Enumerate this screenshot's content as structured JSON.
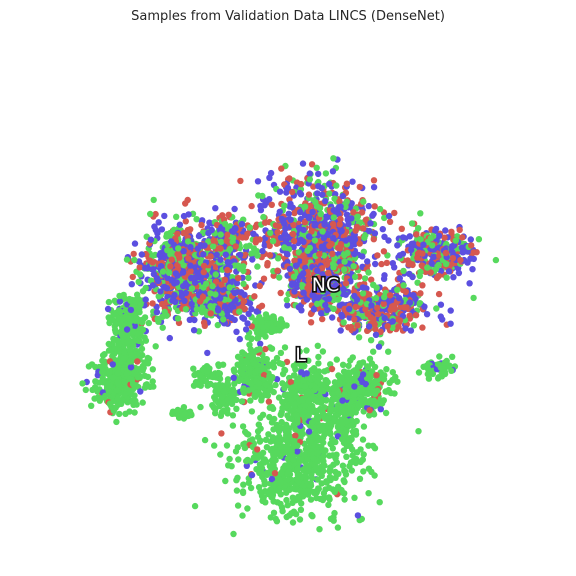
{
  "chart_data": {
    "type": "scatter",
    "title": "Samples from Validation Data LINCS (DenseNet)",
    "xlabel": "",
    "ylabel": "",
    "xlim": [
      -100,
      100
    ],
    "ylim": [
      -100,
      100
    ],
    "grid": false,
    "axes_visible": false,
    "legend": "none",
    "series": [
      {
        "color": "#5b4fe0",
        "point_count": 1400
      },
      {
        "color": "#d6584f",
        "point_count": 1100
      },
      {
        "color": "#56d95d",
        "point_count": 2500
      }
    ],
    "clusters": [
      {
        "center": [
          -43,
          7
        ],
        "spread": [
          8,
          9
        ],
        "composition": [
          0.4,
          0.32,
          0.28
        ],
        "weight": 0.14
      },
      {
        "center": [
          -24,
          17
        ],
        "spread": [
          6,
          6
        ],
        "composition": [
          0.38,
          0.3,
          0.32
        ],
        "weight": 0.05
      },
      {
        "center": [
          -27,
          -5
        ],
        "spread": [
          7,
          5
        ],
        "composition": [
          0.46,
          0.34,
          0.2
        ],
        "weight": 0.06
      },
      {
        "center": [
          13,
          21
        ],
        "spread": [
          11,
          11
        ],
        "composition": [
          0.42,
          0.34,
          0.24
        ],
        "weight": 0.17
      },
      {
        "center": [
          13,
          0
        ],
        "spread": [
          6,
          5
        ],
        "composition": [
          0.4,
          0.38,
          0.22
        ],
        "weight": 0.04
      },
      {
        "center": [
          36,
          -8
        ],
        "spread": [
          10,
          5
        ],
        "composition": [
          0.42,
          0.36,
          0.22
        ],
        "weight": 0.07
      },
      {
        "center": [
          60,
          14
        ],
        "spread": [
          7,
          5
        ],
        "composition": [
          0.4,
          0.32,
          0.28
        ],
        "weight": 0.06
      },
      {
        "center": [
          -63,
          -12
        ],
        "spread": [
          4,
          4
        ],
        "composition": [
          0.06,
          0.02,
          0.92
        ],
        "weight": 0.03
      },
      {
        "center": [
          -65,
          -27
        ],
        "spread": [
          4,
          5
        ],
        "composition": [
          0.03,
          0.02,
          0.95
        ],
        "weight": 0.03
      },
      {
        "center": [
          -68,
          -39
        ],
        "spread": [
          5,
          5
        ],
        "composition": [
          0.02,
          0.02,
          0.96
        ],
        "weight": 0.05
      },
      {
        "center": [
          -8,
          -15
        ],
        "spread": [
          3,
          2
        ],
        "composition": [
          0.0,
          0.0,
          1.0
        ],
        "weight": 0.02
      },
      {
        "center": [
          -13,
          -34
        ],
        "spread": [
          4,
          6
        ],
        "composition": [
          0.06,
          0.06,
          0.88
        ],
        "weight": 0.04
      },
      {
        "center": [
          -32,
          -35
        ],
        "spread": [
          3,
          2
        ],
        "composition": [
          0.0,
          0.02,
          0.98
        ],
        "weight": 0.01
      },
      {
        "center": [
          -26,
          -43
        ],
        "spread": [
          3,
          4
        ],
        "composition": [
          0.0,
          0.0,
          1.0
        ],
        "weight": 0.015
      },
      {
        "center": [
          -42,
          -50
        ],
        "spread": [
          2,
          1
        ],
        "composition": [
          0.0,
          0.0,
          1.0
        ],
        "weight": 0.005
      },
      {
        "center": [
          7,
          -43
        ],
        "spread": [
          5,
          7
        ],
        "composition": [
          0.06,
          0.04,
          0.9
        ],
        "weight": 0.05
      },
      {
        "center": [
          28,
          -40
        ],
        "spread": [
          6,
          5
        ],
        "composition": [
          0.04,
          0.04,
          0.92
        ],
        "weight": 0.06
      },
      {
        "center": [
          3,
          -70
        ],
        "spread": [
          13,
          10
        ],
        "composition": [
          0.02,
          0.02,
          0.96
        ],
        "weight": 0.11
      },
      {
        "center": [
          21,
          -55
        ],
        "spread": [
          5,
          5
        ],
        "composition": [
          0.02,
          0.02,
          0.96
        ],
        "weight": 0.02
      },
      {
        "center": [
          60,
          -32
        ],
        "spread": [
          3,
          2
        ],
        "composition": [
          0.1,
          0.0,
          0.9
        ],
        "weight": 0.01
      }
    ],
    "annotations": [
      {
        "text": "NC",
        "x": 15,
        "y": 1
      },
      {
        "text": "L",
        "x": 5,
        "y": -27
      }
    ]
  }
}
